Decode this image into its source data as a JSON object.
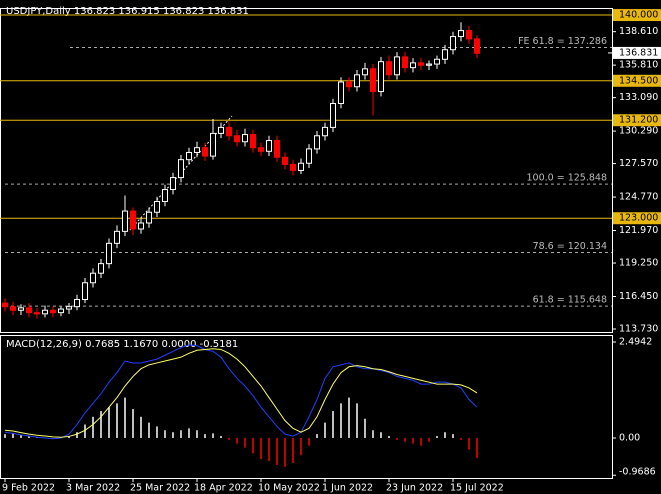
{
  "chart_data": [
    {
      "type": "candlestick",
      "title": "USDJPY,Daily  136.823 136.915 136.823 136.831",
      "categories": [
        "9 Feb 2022",
        null,
        null,
        null,
        null,
        null,
        null,
        null,
        "3 Mar 2022",
        null,
        null,
        null,
        null,
        null,
        null,
        null,
        "25 Mar 2022",
        null,
        null,
        null,
        null,
        null,
        null,
        null,
        "18 Apr 2022",
        null,
        null,
        null,
        null,
        null,
        null,
        null,
        "10 May 2022",
        null,
        null,
        null,
        null,
        null,
        null,
        null,
        "1 Jun 2022",
        null,
        null,
        null,
        null,
        null,
        null,
        null,
        "23 Jun 2022",
        null,
        null,
        null,
        null,
        null,
        null,
        null,
        "15 Jul 2022",
        null,
        null,
        null
      ],
      "open": [
        115.9,
        115.6,
        115.3,
        115.5,
        115.1,
        115.0,
        115.3,
        115.1,
        115.4,
        115.6,
        116.2,
        117.6,
        118.4,
        119.2,
        120.9,
        121.9,
        123.6,
        122.1,
        122.6,
        123.5,
        124.4,
        125.4,
        126.4,
        127.9,
        128.5,
        128.9,
        128.2,
        130.1,
        130.6,
        129.9,
        129.4,
        130.0,
        128.9,
        128.6,
        129.5,
        128.1,
        127.5,
        127.0,
        127.6,
        128.8,
        129.9,
        130.6,
        132.6,
        134.4,
        134.0,
        135.0,
        135.5,
        133.6,
        136.1,
        135.0,
        136.5,
        135.6,
        136.0,
        135.8,
        135.9,
        136.3,
        137.1,
        138.2,
        138.7,
        138.0
      ],
      "high": [
        116.3,
        116.0,
        115.8,
        115.9,
        115.5,
        115.7,
        115.6,
        115.6,
        115.9,
        116.6,
        118.0,
        118.8,
        119.6,
        121.3,
        122.4,
        124.9,
        123.9,
        123.0,
        123.9,
        124.8,
        125.8,
        126.8,
        128.3,
        128.9,
        129.4,
        129.3,
        131.3,
        131.0,
        131.1,
        130.4,
        130.5,
        130.4,
        129.3,
        129.9,
        129.9,
        128.5,
        127.9,
        128.0,
        129.2,
        130.3,
        131.0,
        133.0,
        134.8,
        134.8,
        135.4,
        136.0,
        135.9,
        136.5,
        136.6,
        136.9,
        136.9,
        136.4,
        136.4,
        136.2,
        136.6,
        137.5,
        138.6,
        139.4,
        139.1,
        138.3
      ],
      "low": [
        115.2,
        114.9,
        114.9,
        114.7,
        114.6,
        114.7,
        114.7,
        114.8,
        115.0,
        115.3,
        115.9,
        117.2,
        118.0,
        118.8,
        120.5,
        121.5,
        121.6,
        121.7,
        122.2,
        123.1,
        124.0,
        125.0,
        126.0,
        127.5,
        128.1,
        127.8,
        127.9,
        129.7,
        129.5,
        129.0,
        129.0,
        128.5,
        128.2,
        128.2,
        127.7,
        127.1,
        126.6,
        126.7,
        127.2,
        128.4,
        129.5,
        130.2,
        132.2,
        133.6,
        133.6,
        134.6,
        131.6,
        133.2,
        134.6,
        134.6,
        135.2,
        135.2,
        135.4,
        135.4,
        135.5,
        135.9,
        136.7,
        137.8,
        137.6,
        136.4
      ],
      "close": [
        115.6,
        115.3,
        115.5,
        115.1,
        115.0,
        115.3,
        115.1,
        115.4,
        115.6,
        116.2,
        117.6,
        118.4,
        119.2,
        120.9,
        121.9,
        123.6,
        122.1,
        122.6,
        123.5,
        124.4,
        125.4,
        126.4,
        127.9,
        128.5,
        128.9,
        128.2,
        130.1,
        130.6,
        129.9,
        129.4,
        130.0,
        128.9,
        128.6,
        129.5,
        128.1,
        127.5,
        127.0,
        127.6,
        128.8,
        129.9,
        130.6,
        132.6,
        134.4,
        134.0,
        135.0,
        135.5,
        133.6,
        136.1,
        135.0,
        136.5,
        135.6,
        136.0,
        135.8,
        135.9,
        136.3,
        137.1,
        138.2,
        138.7,
        138.0,
        136.8
      ],
      "up_color": "#ffffff",
      "down_color": "#ff0000",
      "ylim": [
        113.48,
        140.59
      ],
      "yticks": [
        {
          "value": 138.61,
          "label": "138.610"
        },
        {
          "value": 135.81,
          "label": "135.810"
        },
        {
          "value": 133.09,
          "label": "133.090"
        },
        {
          "value": 130.29,
          "label": "130.290"
        },
        {
          "value": 127.57,
          "label": "127.570"
        },
        {
          "value": 124.77,
          "label": "124.770"
        },
        {
          "value": 121.97,
          "label": "121.970"
        },
        {
          "value": 119.25,
          "label": "119.250"
        },
        {
          "value": 116.45,
          "label": "116.450"
        },
        {
          "value": 113.73,
          "label": "113.730"
        }
      ],
      "levels": [
        {
          "value": 140,
          "label": "140.000"
        },
        {
          "value": 134.5,
          "label": "134.500"
        },
        {
          "value": 131.2,
          "label": "131.200"
        },
        {
          "value": 123,
          "label": "123.000"
        }
      ],
      "level_color": "#e8b810",
      "fib_lines": [
        {
          "value": 137.286,
          "label": "FE 61.8 = 137.286"
        },
        {
          "value": 125.848,
          "label": "100.0 = 125.848"
        },
        {
          "value": 120.134,
          "label": "78.6 = 120.134"
        },
        {
          "value": 115.648,
          "label": "61.8 = 115.648"
        }
      ],
      "current_price": {
        "value": 136.831,
        "label": "136.831"
      }
    },
    {
      "type": "macd",
      "title": "MACD(12,26,9) 0.7685 1.1670 0.0000 -0.5181",
      "ylim": [
        -1.04,
        2.65
      ],
      "yticks": [
        2.4942,
        {
          "value": 0,
          "label": "0.00"
        },
        -0.9686
      ],
      "series": [
        {
          "kind": "histogram",
          "color": "#ffffff",
          "negative_color": "#ff0000",
          "values": [
            0.1,
            0.12,
            0.08,
            0.05,
            0.02,
            0.0,
            -0.02,
            0.02,
            0.05,
            0.15,
            0.35,
            0.55,
            0.7,
            0.8,
            0.9,
            1.05,
            0.75,
            0.55,
            0.4,
            0.3,
            0.2,
            0.15,
            0.2,
            0.25,
            0.2,
            0.1,
            0.12,
            0.05,
            -0.05,
            -0.15,
            -0.25,
            -0.4,
            -0.55,
            -0.6,
            -0.7,
            -0.75,
            -0.65,
            -0.45,
            -0.2,
            0.1,
            0.4,
            0.7,
            0.9,
            1.05,
            0.9,
            0.5,
            0.2,
            0.15,
            0.05,
            -0.05,
            -0.1,
            -0.15,
            -0.2,
            -0.1,
            0.05,
            0.15,
            0.1,
            -0.05,
            -0.3,
            -0.52
          ]
        },
        {
          "kind": "line",
          "color": "#1f3fff",
          "values": [
            0.15,
            0.12,
            0.08,
            0.05,
            0.02,
            0.0,
            -0.02,
            0.0,
            0.1,
            0.35,
            0.65,
            0.9,
            1.15,
            1.45,
            1.7,
            2.0,
            1.95,
            1.95,
            2.0,
            2.05,
            2.15,
            2.25,
            2.35,
            2.42,
            2.4,
            2.3,
            2.25,
            2.1,
            1.8,
            1.55,
            1.35,
            1.1,
            0.8,
            0.55,
            0.3,
            0.1,
            0.05,
            0.15,
            0.55,
            1.0,
            1.55,
            1.85,
            1.9,
            1.95,
            1.85,
            1.8,
            1.8,
            1.75,
            1.7,
            1.6,
            1.55,
            1.5,
            1.4,
            1.4,
            1.45,
            1.45,
            1.4,
            1.3,
            1.0,
            0.8
          ]
        },
        {
          "kind": "line",
          "color": "#ffff66",
          "values": [
            0.2,
            0.18,
            0.14,
            0.1,
            0.07,
            0.05,
            0.03,
            0.02,
            0.04,
            0.1,
            0.2,
            0.35,
            0.55,
            0.8,
            1.05,
            1.35,
            1.6,
            1.8,
            1.9,
            1.95,
            2.0,
            2.05,
            2.1,
            2.2,
            2.28,
            2.3,
            2.32,
            2.3,
            2.2,
            2.05,
            1.85,
            1.6,
            1.35,
            1.05,
            0.75,
            0.45,
            0.25,
            0.15,
            0.25,
            0.55,
            1.0,
            1.4,
            1.7,
            1.85,
            1.88,
            1.85,
            1.8,
            1.78,
            1.72,
            1.65,
            1.6,
            1.55,
            1.5,
            1.45,
            1.4,
            1.4,
            1.4,
            1.38,
            1.3,
            1.17
          ]
        }
      ]
    }
  ]
}
